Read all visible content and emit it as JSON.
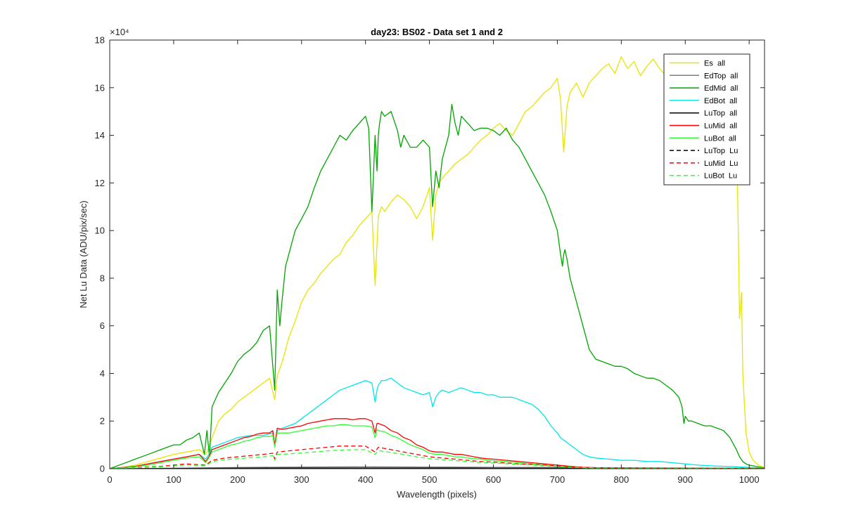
{
  "chart_data": {
    "type": "line",
    "title": "day23: BS02 - Data set 1 and 2",
    "xlabel": "Wavelength (pixels)",
    "ylabel": "Net Lu Data (ADU/pix/sec)",
    "y_exponent_label": "×10⁴",
    "xlim": [
      0,
      1024
    ],
    "ylim": [
      0,
      18
    ],
    "xticks": [
      0,
      100,
      200,
      300,
      400,
      500,
      600,
      700,
      800,
      900,
      1000
    ],
    "yticks": [
      0,
      2,
      4,
      6,
      8,
      10,
      12,
      14,
      16,
      18
    ],
    "grid": false,
    "legend_position": "top-right",
    "series": [
      {
        "name": "Es  all",
        "color": "#e6e600",
        "dash": "solid",
        "x": [
          0,
          20,
          40,
          60,
          80,
          100,
          120,
          140,
          150,
          155,
          160,
          170,
          180,
          190,
          200,
          210,
          220,
          230,
          240,
          250,
          258,
          262,
          270,
          280,
          290,
          300,
          310,
          320,
          330,
          340,
          350,
          360,
          370,
          380,
          390,
          400,
          410,
          415,
          420,
          425,
          430,
          440,
          450,
          460,
          470,
          480,
          490,
          500,
          505,
          510,
          515,
          520,
          530,
          540,
          550,
          560,
          570,
          580,
          590,
          600,
          610,
          620,
          630,
          640,
          650,
          660,
          670,
          680,
          690,
          700,
          705,
          710,
          715,
          720,
          730,
          740,
          750,
          760,
          770,
          780,
          790,
          800,
          810,
          820,
          830,
          840,
          850,
          860,
          870,
          880,
          890,
          900,
          910,
          920,
          930,
          940,
          950,
          960,
          970,
          975,
          980,
          983,
          985,
          988,
          990,
          995,
          1000,
          1005,
          1010,
          1015,
          1020,
          1024
        ],
        "y": [
          0,
          0.05,
          0.15,
          0.3,
          0.45,
          0.6,
          0.7,
          0.8,
          0.6,
          0.9,
          1.3,
          2.0,
          2.3,
          2.5,
          2.8,
          3.0,
          3.2,
          3.4,
          3.6,
          3.8,
          2.9,
          3.9,
          4.5,
          5.5,
          6.2,
          7.0,
          7.5,
          7.8,
          8.2,
          8.5,
          8.8,
          9.0,
          9.5,
          9.8,
          10.2,
          10.5,
          10.8,
          7.7,
          10.6,
          11.0,
          10.8,
          11.2,
          11.5,
          11.3,
          11.0,
          10.5,
          11.0,
          11.8,
          9.6,
          11.5,
          12.0,
          12.2,
          12.5,
          12.8,
          13.0,
          13.2,
          13.5,
          13.8,
          14.0,
          14.3,
          14.5,
          14.2,
          14.0,
          14.5,
          15.0,
          15.2,
          15.5,
          15.8,
          16.0,
          16.4,
          15.5,
          13.3,
          15.2,
          15.8,
          16.2,
          15.6,
          16.2,
          16.5,
          16.8,
          17.0,
          16.6,
          17.3,
          16.8,
          17.1,
          16.5,
          16.9,
          17.2,
          16.8,
          16.5,
          17.0,
          16.9,
          16.5,
          17.0,
          16.8,
          16.5,
          16.9,
          16.6,
          16.7,
          16.4,
          16.0,
          14.0,
          10.0,
          6.3,
          7.4,
          4.0,
          1.5,
          0.7,
          0.4,
          0.25,
          0.15,
          0.08,
          0.05
        ]
      },
      {
        "name": "EdTop  all",
        "color": "#808080",
        "dash": "solid",
        "x": [
          0,
          100,
          200,
          300,
          400,
          500,
          600,
          700,
          800,
          900,
          1000,
          1024
        ],
        "y": [
          0,
          0.02,
          0.05,
          0.07,
          0.08,
          0.07,
          0.06,
          0.05,
          0.04,
          0.03,
          0.02,
          0.01
        ]
      },
      {
        "name": "EdMid  all",
        "color": "#00a600",
        "dash": "solid",
        "x": [
          0,
          20,
          40,
          60,
          80,
          100,
          110,
          120,
          130,
          140,
          148,
          152,
          156,
          160,
          170,
          180,
          190,
          200,
          210,
          220,
          230,
          240,
          250,
          258,
          262,
          266,
          270,
          275,
          280,
          290,
          300,
          310,
          320,
          330,
          340,
          350,
          360,
          370,
          380,
          390,
          400,
          405,
          410,
          415,
          418,
          420,
          422,
          425,
          430,
          440,
          450,
          455,
          460,
          470,
          480,
          490,
          500,
          505,
          510,
          515,
          520,
          530,
          535,
          540,
          545,
          550,
          560,
          570,
          580,
          590,
          600,
          610,
          620,
          630,
          640,
          650,
          660,
          670,
          680,
          690,
          700,
          705,
          708,
          710,
          712,
          715,
          720,
          730,
          740,
          750,
          760,
          770,
          780,
          790,
          800,
          810,
          820,
          830,
          840,
          850,
          860,
          870,
          880,
          890,
          895,
          898,
          900,
          905,
          910,
          920,
          930,
          940,
          950,
          960,
          970,
          980,
          985,
          990,
          995,
          1000,
          1010,
          1020,
          1024
        ],
        "y": [
          0,
          0.2,
          0.4,
          0.6,
          0.8,
          1.0,
          1.0,
          1.2,
          1.3,
          1.5,
          0.6,
          1.6,
          0.5,
          2.6,
          3.2,
          3.6,
          4.0,
          4.5,
          4.8,
          5.0,
          5.3,
          5.8,
          6.0,
          3.3,
          7.5,
          6.0,
          7.2,
          8.5,
          9.0,
          10.0,
          10.5,
          11.0,
          11.8,
          12.5,
          13.0,
          13.5,
          14.0,
          13.8,
          14.2,
          14.5,
          14.8,
          14.3,
          10.8,
          14.0,
          12.5,
          14.0,
          14.5,
          15.0,
          14.8,
          15.0,
          14.2,
          13.5,
          14.0,
          13.5,
          13.5,
          13.8,
          13.5,
          11.0,
          12.5,
          11.8,
          13.0,
          14.0,
          15.3,
          14.5,
          14.0,
          14.8,
          14.5,
          14.2,
          14.3,
          14.3,
          14.2,
          14.0,
          14.3,
          13.8,
          13.5,
          13.0,
          12.5,
          12.0,
          11.5,
          10.8,
          10.0,
          9.0,
          8.5,
          9.0,
          9.2,
          8.8,
          8.0,
          7.0,
          6.0,
          5.0,
          4.6,
          4.5,
          4.4,
          4.3,
          4.3,
          4.2,
          4.0,
          3.9,
          3.8,
          3.8,
          3.7,
          3.5,
          3.3,
          3.0,
          2.6,
          1.9,
          2.2,
          2.0,
          2.0,
          1.9,
          1.8,
          1.8,
          1.7,
          1.6,
          1.3,
          0.8,
          0.5,
          0.3,
          0.2,
          0.15,
          0.1,
          0.05,
          0.03
        ]
      },
      {
        "name": "EdBot  all",
        "color": "#00e6e6",
        "dash": "solid",
        "x": [
          0,
          20,
          40,
          60,
          80,
          100,
          120,
          140,
          150,
          155,
          160,
          170,
          180,
          190,
          200,
          220,
          240,
          255,
          258,
          262,
          270,
          280,
          290,
          300,
          310,
          320,
          330,
          340,
          350,
          360,
          370,
          380,
          390,
          400,
          410,
          415,
          418,
          420,
          425,
          430,
          440,
          450,
          460,
          470,
          480,
          490,
          500,
          505,
          510,
          515,
          520,
          530,
          540,
          550,
          560,
          570,
          580,
          590,
          600,
          610,
          620,
          630,
          640,
          650,
          660,
          670,
          680,
          690,
          700,
          705,
          710,
          715,
          720,
          730,
          740,
          750,
          760,
          780,
          800,
          820,
          840,
          860,
          880,
          900,
          920,
          940,
          960,
          980,
          1000,
          1020,
          1024
        ],
        "y": [
          0,
          0.05,
          0.1,
          0.2,
          0.3,
          0.4,
          0.5,
          0.6,
          0.4,
          0.6,
          0.9,
          1.0,
          1.1,
          1.2,
          1.3,
          1.4,
          1.4,
          1.5,
          1.0,
          1.6,
          1.7,
          1.8,
          1.9,
          2.1,
          2.3,
          2.5,
          2.7,
          2.9,
          3.1,
          3.3,
          3.4,
          3.5,
          3.6,
          3.7,
          3.6,
          2.8,
          3.3,
          3.5,
          3.7,
          3.7,
          3.8,
          3.6,
          3.4,
          3.3,
          3.2,
          3.1,
          3.2,
          2.6,
          3.0,
          3.2,
          3.3,
          3.2,
          3.3,
          3.4,
          3.3,
          3.2,
          3.2,
          3.1,
          3.1,
          3.0,
          3.0,
          3.0,
          2.9,
          2.8,
          2.7,
          2.5,
          2.2,
          1.8,
          1.5,
          1.3,
          1.2,
          1.1,
          1.0,
          0.8,
          0.6,
          0.5,
          0.45,
          0.4,
          0.35,
          0.35,
          0.3,
          0.3,
          0.25,
          0.2,
          0.15,
          0.12,
          0.1,
          0.08,
          0.05,
          0.03,
          0.02
        ]
      },
      {
        "name": "LuTop  all",
        "color": "#000000",
        "dash": "solid",
        "x": [
          0,
          100,
          200,
          300,
          400,
          500,
          600,
          700,
          800,
          900,
          1000,
          1024
        ],
        "y": [
          0,
          0.01,
          0.02,
          0.03,
          0.03,
          0.03,
          0.02,
          0.02,
          0.01,
          0.01,
          0.01,
          0
        ]
      },
      {
        "name": "LuMid  all",
        "color": "#ff0000",
        "dash": "solid",
        "x": [
          0,
          20,
          40,
          60,
          80,
          100,
          120,
          140,
          150,
          155,
          160,
          170,
          180,
          190,
          200,
          210,
          220,
          230,
          240,
          250,
          255,
          258,
          262,
          270,
          280,
          290,
          300,
          310,
          320,
          330,
          340,
          350,
          360,
          370,
          380,
          390,
          400,
          410,
          415,
          418,
          420,
          430,
          440,
          450,
          460,
          470,
          480,
          490,
          500,
          510,
          520,
          530,
          540,
          550,
          560,
          570,
          580,
          590,
          600,
          620,
          640,
          660,
          680,
          700,
          720,
          740,
          760,
          780,
          800,
          850,
          900,
          950,
          1000,
          1024
        ],
        "y": [
          0,
          0.05,
          0.1,
          0.2,
          0.3,
          0.4,
          0.5,
          0.6,
          0.3,
          0.5,
          0.8,
          0.9,
          1.0,
          1.1,
          1.2,
          1.3,
          1.35,
          1.45,
          1.5,
          1.5,
          1.6,
          1.0,
          1.7,
          1.65,
          1.7,
          1.75,
          1.8,
          1.9,
          1.95,
          2.0,
          2.05,
          2.1,
          2.1,
          2.1,
          2.05,
          2.1,
          2.1,
          2.0,
          1.5,
          1.9,
          1.9,
          1.8,
          1.6,
          1.5,
          1.3,
          1.2,
          1.0,
          0.9,
          0.75,
          0.7,
          0.7,
          0.65,
          0.6,
          0.6,
          0.55,
          0.5,
          0.45,
          0.42,
          0.4,
          0.35,
          0.3,
          0.25,
          0.2,
          0.15,
          0.1,
          0.06,
          0.04,
          0.03,
          0.02,
          0.01,
          0.01,
          0.01,
          0.01,
          0
        ]
      },
      {
        "name": "LuBot  all",
        "color": "#33ff33",
        "dash": "solid",
        "x": [
          0,
          20,
          40,
          60,
          80,
          100,
          120,
          140,
          150,
          155,
          160,
          170,
          180,
          190,
          200,
          210,
          220,
          230,
          240,
          250,
          255,
          258,
          262,
          270,
          280,
          290,
          300,
          310,
          320,
          330,
          340,
          350,
          360,
          370,
          380,
          390,
          400,
          410,
          415,
          418,
          420,
          430,
          440,
          450,
          460,
          470,
          480,
          490,
          500,
          510,
          520,
          530,
          540,
          550,
          560,
          570,
          580,
          590,
          600,
          620,
          640,
          660,
          680,
          700,
          720,
          740,
          760,
          780,
          800,
          850,
          900,
          950,
          1000,
          1024
        ],
        "y": [
          0,
          0.04,
          0.08,
          0.15,
          0.25,
          0.35,
          0.45,
          0.5,
          0.25,
          0.45,
          0.7,
          0.8,
          0.9,
          1.0,
          1.05,
          1.15,
          1.2,
          1.3,
          1.35,
          1.35,
          1.4,
          0.9,
          1.5,
          1.5,
          1.5,
          1.55,
          1.6,
          1.65,
          1.7,
          1.75,
          1.8,
          1.8,
          1.85,
          1.85,
          1.8,
          1.8,
          1.8,
          1.75,
          1.3,
          1.65,
          1.6,
          1.55,
          1.4,
          1.3,
          1.15,
          1.0,
          0.9,
          0.8,
          0.65,
          0.6,
          0.6,
          0.55,
          0.5,
          0.5,
          0.45,
          0.42,
          0.4,
          0.36,
          0.34,
          0.3,
          0.25,
          0.2,
          0.15,
          0.1,
          0.07,
          0.04,
          0.03,
          0.02,
          0.01,
          0.01,
          0.01,
          0.01,
          0.01,
          0
        ]
      },
      {
        "name": "LuTop  Lu",
        "color": "#000000",
        "dash": "dashed",
        "x": [
          0,
          100,
          200,
          300,
          400,
          500,
          600,
          700,
          800,
          900,
          1000,
          1024
        ],
        "y": [
          0,
          0.005,
          0.01,
          0.015,
          0.015,
          0.015,
          0.01,
          0.01,
          0.005,
          0.005,
          0.005,
          0
        ]
      },
      {
        "name": "LuMid  Lu",
        "color": "#ff0000",
        "dash": "dashed",
        "x": [
          0,
          40,
          80,
          120,
          150,
          160,
          180,
          200,
          220,
          240,
          255,
          258,
          262,
          280,
          300,
          320,
          340,
          360,
          380,
          400,
          415,
          420,
          440,
          460,
          480,
          500,
          520,
          540,
          560,
          580,
          600,
          640,
          680,
          720,
          760,
          800,
          900,
          1000,
          1024
        ],
        "y": [
          0,
          0.05,
          0.1,
          0.2,
          0.15,
          0.35,
          0.45,
          0.5,
          0.55,
          0.6,
          0.65,
          0.4,
          0.7,
          0.75,
          0.8,
          0.85,
          0.9,
          0.95,
          0.95,
          0.95,
          0.7,
          0.9,
          0.8,
          0.7,
          0.6,
          0.5,
          0.45,
          0.4,
          0.35,
          0.3,
          0.28,
          0.2,
          0.15,
          0.08,
          0.04,
          0.02,
          0.01,
          0.01,
          0
        ]
      },
      {
        "name": "LuBot  Lu",
        "color": "#33ff33",
        "dash": "dashed",
        "x": [
          0,
          40,
          80,
          120,
          150,
          160,
          180,
          200,
          220,
          240,
          255,
          258,
          262,
          280,
          300,
          320,
          340,
          360,
          380,
          400,
          415,
          420,
          440,
          460,
          480,
          500,
          520,
          540,
          560,
          580,
          600,
          640,
          680,
          720,
          760,
          800,
          900,
          1000,
          1024
        ],
        "y": [
          0,
          0.04,
          0.08,
          0.16,
          0.12,
          0.3,
          0.38,
          0.42,
          0.46,
          0.5,
          0.55,
          0.35,
          0.6,
          0.62,
          0.66,
          0.7,
          0.75,
          0.78,
          0.8,
          0.8,
          0.6,
          0.76,
          0.68,
          0.6,
          0.5,
          0.42,
          0.38,
          0.34,
          0.3,
          0.26,
          0.24,
          0.18,
          0.12,
          0.06,
          0.03,
          0.02,
          0.01,
          0.01,
          0
        ]
      }
    ]
  }
}
